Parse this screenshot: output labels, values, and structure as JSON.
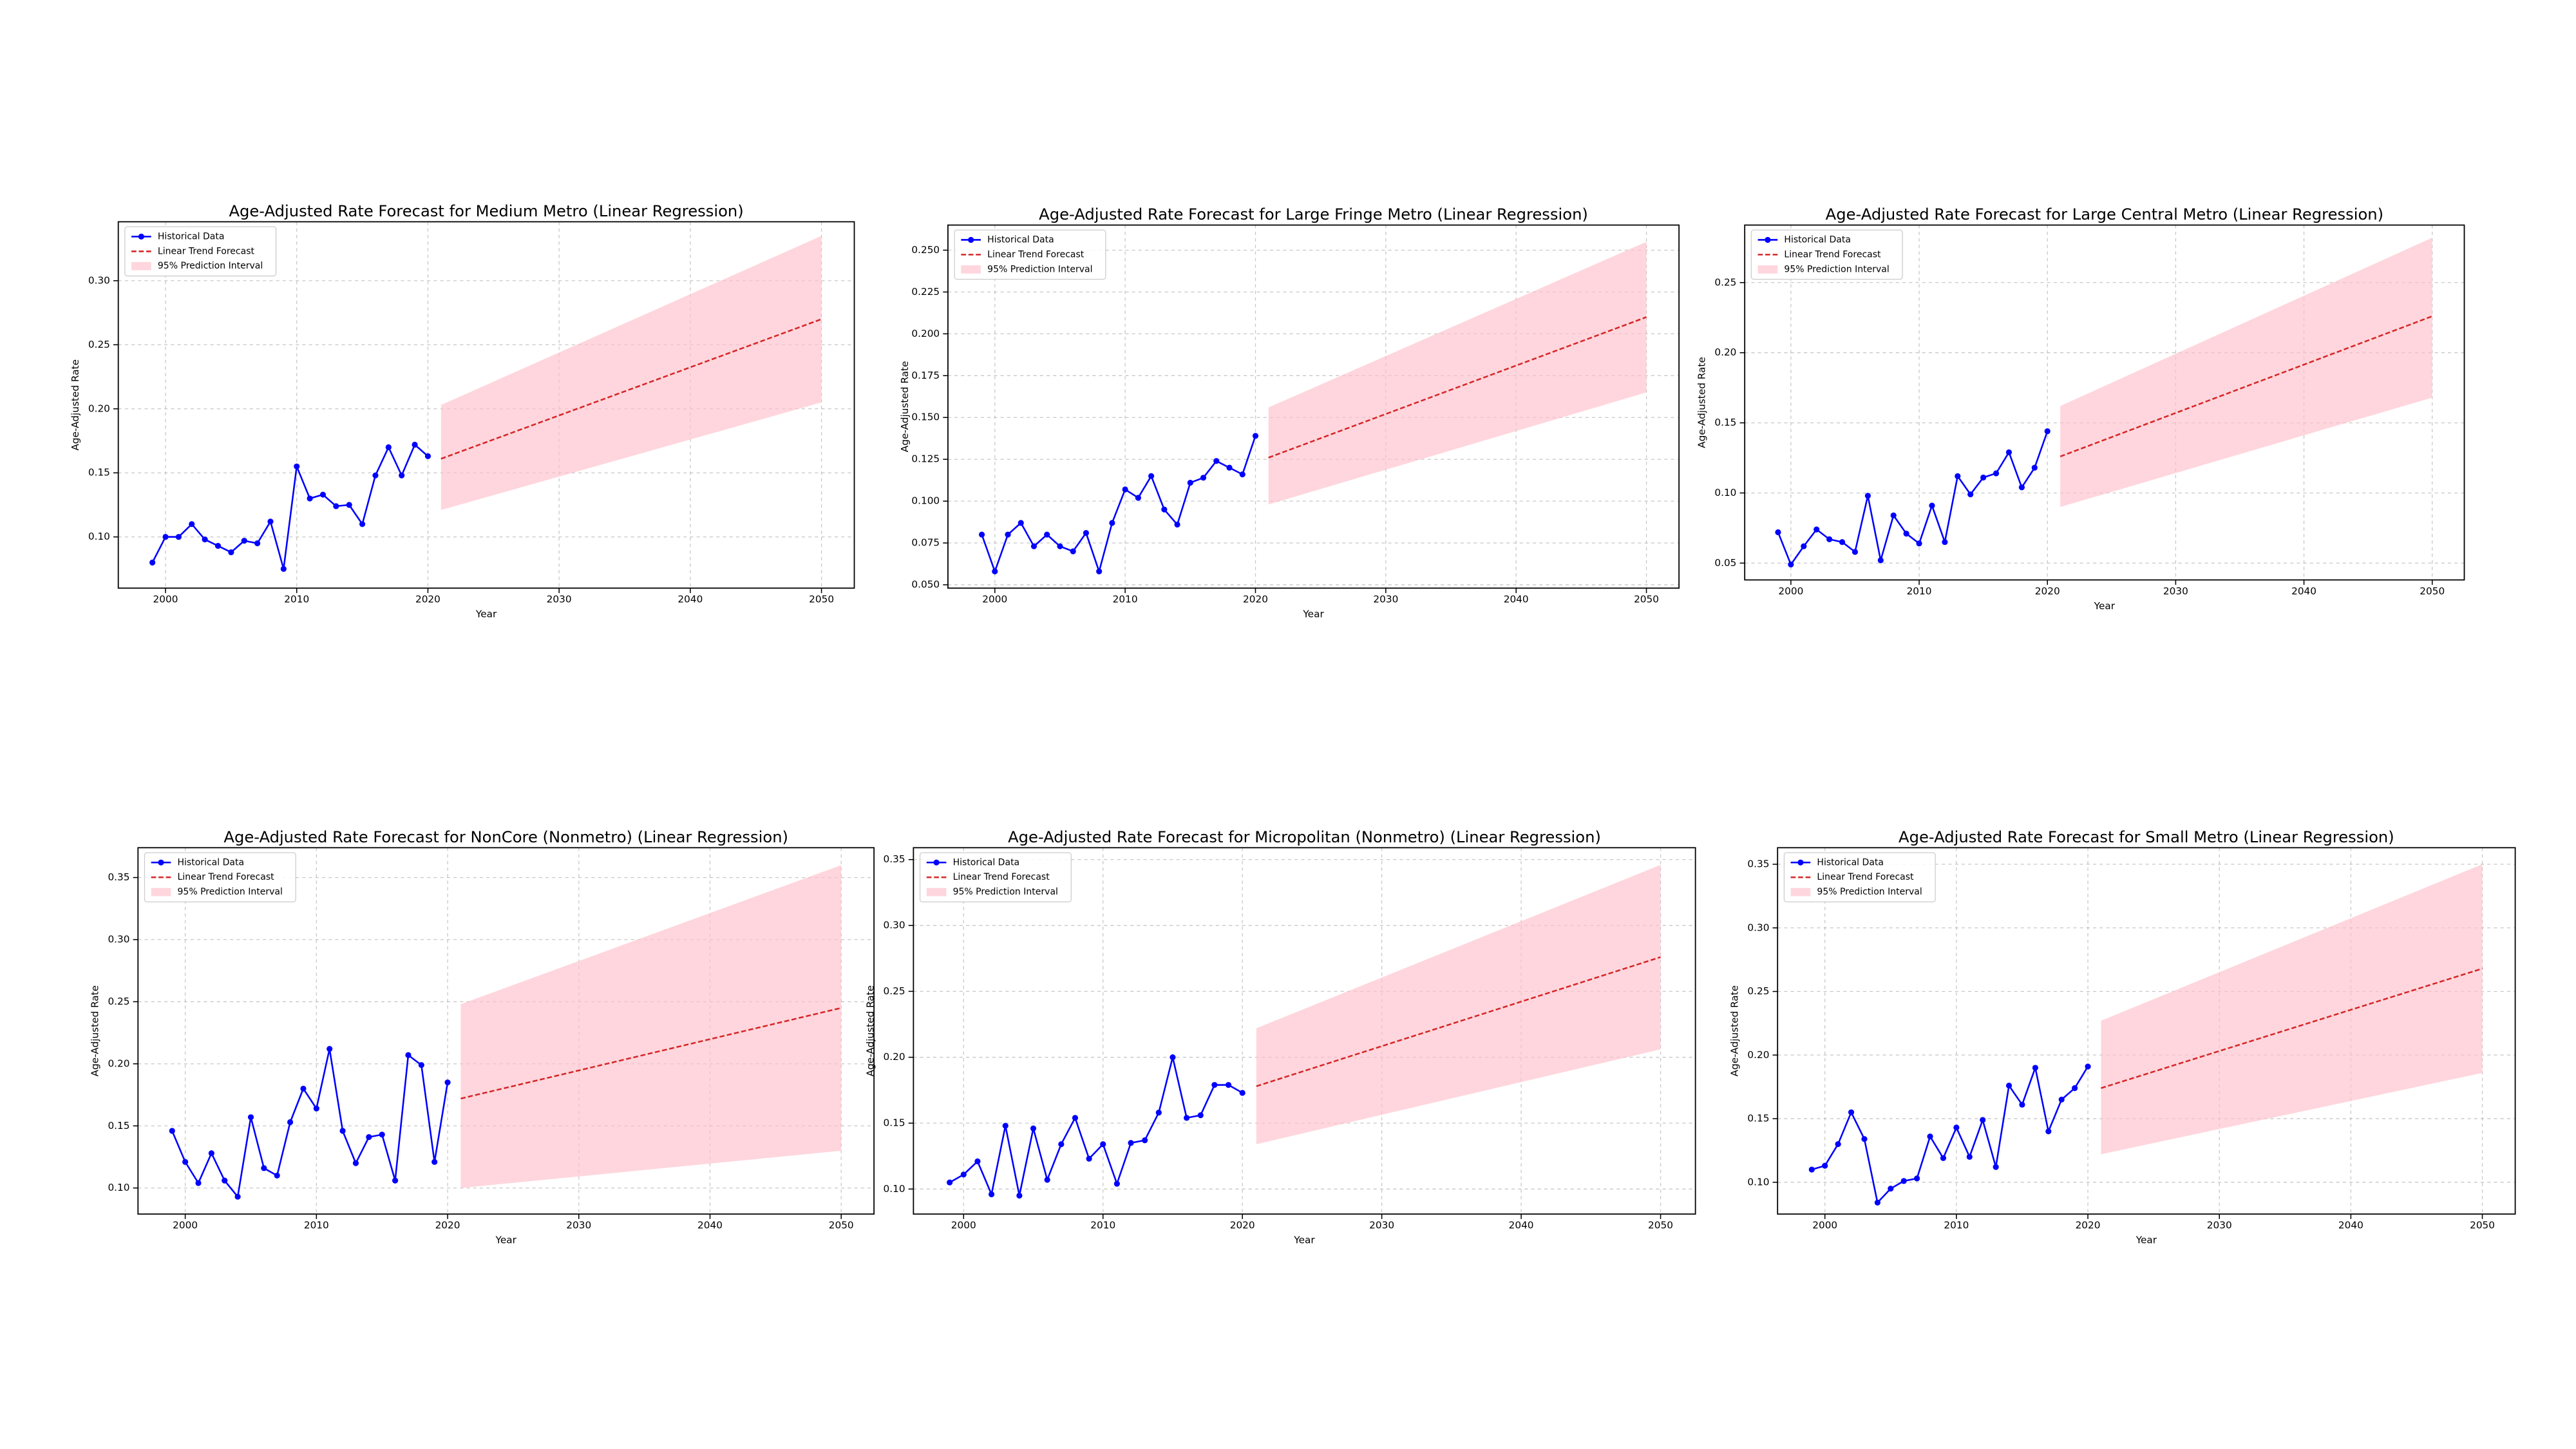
{
  "chart_data": [
    {
      "type": "line",
      "title": "Age-Adjusted Rate Forecast for Medium Metro (Linear Regression)",
      "x_label": "Year",
      "y_label": "Age-Adjusted Rate",
      "grid": true,
      "legend": "upper left",
      "xlim": [
        1996.4,
        2052.5
      ],
      "xticks": [
        2000,
        2010,
        2020,
        2030,
        2040,
        2050
      ],
      "ylim": [
        0.06,
        0.346
      ],
      "yticks": [
        {
          "value": 0.1,
          "label": "0.10"
        },
        {
          "value": 0.15,
          "label": "0.15"
        },
        {
          "value": 0.2,
          "label": "0.20"
        },
        {
          "value": 0.25,
          "label": "0.25"
        },
        {
          "value": 0.3,
          "label": "0.30"
        }
      ],
      "series": [
        {
          "name": "Historical Data",
          "color": "#0000ff",
          "marker": "o",
          "x": [
            1999,
            2000,
            2001,
            2002,
            2003,
            2004,
            2005,
            2006,
            2007,
            2008,
            2009,
            2010,
            2011,
            2012,
            2013,
            2014,
            2015,
            2016,
            2017,
            2018,
            2019,
            2020
          ],
          "values": [
            0.08,
            0.1,
            0.1,
            0.11,
            0.098,
            0.093,
            0.088,
            0.097,
            0.095,
            0.112,
            0.075,
            0.155,
            0.13,
            0.133,
            0.124,
            0.125,
            0.11,
            0.148,
            0.17,
            0.148,
            0.172,
            0.163
          ]
        },
        {
          "name": "Linear Trend Forecast",
          "color": "#d62728",
          "line_style": "dashed",
          "x": [
            2021,
            2050
          ],
          "values": [
            0.161,
            0.27
          ]
        },
        {
          "name": "95% Prediction Interval",
          "color": "#ffc0cb",
          "x": [
            2021,
            2050
          ],
          "lower": [
            0.121,
            0.205
          ],
          "upper": [
            0.203,
            0.335
          ]
        }
      ]
    },
    {
      "type": "line",
      "title": "Age-Adjusted Rate Forecast for Large Fringe Metro (Linear Regression)",
      "x_label": "Year",
      "y_label": "Age-Adjusted Rate",
      "grid": true,
      "legend": "upper left",
      "xlim": [
        1996.4,
        2052.5
      ],
      "xticks": [
        2000,
        2010,
        2020,
        2030,
        2040,
        2050
      ],
      "ylim": [
        0.048,
        0.265
      ],
      "yticks": [
        {
          "value": 0.05,
          "label": "0.050"
        },
        {
          "value": 0.075,
          "label": "0.075"
        },
        {
          "value": 0.1,
          "label": "0.100"
        },
        {
          "value": 0.125,
          "label": "0.125"
        },
        {
          "value": 0.15,
          "label": "0.150"
        },
        {
          "value": 0.175,
          "label": "0.175"
        },
        {
          "value": 0.2,
          "label": "0.200"
        },
        {
          "value": 0.225,
          "label": "0.225"
        },
        {
          "value": 0.25,
          "label": "0.250"
        }
      ],
      "series": [
        {
          "name": "Historical Data",
          "color": "#0000ff",
          "marker": "o",
          "x": [
            1999,
            2000,
            2001,
            2002,
            2003,
            2004,
            2005,
            2006,
            2007,
            2008,
            2009,
            2010,
            2011,
            2012,
            2013,
            2014,
            2015,
            2016,
            2017,
            2018,
            2019,
            2020
          ],
          "values": [
            0.08,
            0.058,
            0.08,
            0.087,
            0.073,
            0.08,
            0.073,
            0.07,
            0.081,
            0.058,
            0.087,
            0.107,
            0.102,
            0.115,
            0.095,
            0.086,
            0.111,
            0.114,
            0.124,
            0.12,
            0.116,
            0.139
          ]
        },
        {
          "name": "Linear Trend Forecast",
          "color": "#d62728",
          "line_style": "dashed",
          "x": [
            2021,
            2050
          ],
          "values": [
            0.126,
            0.21
          ]
        },
        {
          "name": "95% Prediction Interval",
          "color": "#ffc0cb",
          "x": [
            2021,
            2050
          ],
          "lower": [
            0.098,
            0.165
          ],
          "upper": [
            0.156,
            0.255
          ]
        }
      ]
    },
    {
      "type": "line",
      "title": "Age-Adjusted Rate Forecast for Large Central Metro (Linear Regression)",
      "x_label": "Year",
      "y_label": "Age-Adjusted Rate",
      "grid": true,
      "legend": "upper left",
      "xlim": [
        1996.4,
        2052.5
      ],
      "xticks": [
        2000,
        2010,
        2020,
        2030,
        2040,
        2050
      ],
      "ylim": [
        0.038,
        0.291
      ],
      "yticks": [
        {
          "value": 0.05,
          "label": "0.05"
        },
        {
          "value": 0.1,
          "label": "0.10"
        },
        {
          "value": 0.15,
          "label": "0.15"
        },
        {
          "value": 0.2,
          "label": "0.20"
        },
        {
          "value": 0.25,
          "label": "0.25"
        }
      ],
      "series": [
        {
          "name": "Historical Data",
          "color": "#0000ff",
          "marker": "o",
          "x": [
            1999,
            2000,
            2001,
            2002,
            2003,
            2004,
            2005,
            2006,
            2007,
            2008,
            2009,
            2010,
            2011,
            2012,
            2013,
            2014,
            2015,
            2016,
            2017,
            2018,
            2019,
            2020
          ],
          "values": [
            0.072,
            0.049,
            0.062,
            0.074,
            0.067,
            0.065,
            0.058,
            0.098,
            0.052,
            0.084,
            0.071,
            0.064,
            0.091,
            0.065,
            0.112,
            0.099,
            0.111,
            0.114,
            0.129,
            0.104,
            0.118,
            0.144
          ]
        },
        {
          "name": "Linear Trend Forecast",
          "color": "#d62728",
          "line_style": "dashed",
          "x": [
            2021,
            2050
          ],
          "values": [
            0.126,
            0.226
          ]
        },
        {
          "name": "95% Prediction Interval",
          "color": "#ffc0cb",
          "x": [
            2021,
            2050
          ],
          "lower": [
            0.09,
            0.168
          ],
          "upper": [
            0.162,
            0.282
          ]
        }
      ]
    },
    {
      "type": "line",
      "title": "Age-Adjusted Rate Forecast for NonCore (Nonmetro) (Linear Regression)",
      "x_label": "Year",
      "y_label": "Age-Adjusted Rate",
      "grid": true,
      "legend": "upper left",
      "xlim": [
        1996.4,
        2052.5
      ],
      "xticks": [
        2000,
        2010,
        2020,
        2030,
        2040,
        2050
      ],
      "ylim": [
        0.079,
        0.374
      ],
      "yticks": [
        {
          "value": 0.1,
          "label": "0.10"
        },
        {
          "value": 0.15,
          "label": "0.15"
        },
        {
          "value": 0.2,
          "label": "0.20"
        },
        {
          "value": 0.25,
          "label": "0.25"
        },
        {
          "value": 0.3,
          "label": "0.30"
        },
        {
          "value": 0.35,
          "label": "0.35"
        }
      ],
      "series": [
        {
          "name": "Historical Data",
          "color": "#0000ff",
          "marker": "o",
          "x": [
            1999,
            2000,
            2001,
            2002,
            2003,
            2004,
            2005,
            2006,
            2007,
            2008,
            2009,
            2010,
            2011,
            2012,
            2013,
            2014,
            2015,
            2016,
            2017,
            2018,
            2019,
            2020
          ],
          "values": [
            0.146,
            0.121,
            0.104,
            0.128,
            0.106,
            0.093,
            0.157,
            0.116,
            0.11,
            0.153,
            0.18,
            0.164,
            0.212,
            0.146,
            0.12,
            0.141,
            0.143,
            0.106,
            0.207,
            0.199,
            0.121,
            0.185
          ]
        },
        {
          "name": "Linear Trend Forecast",
          "color": "#d62728",
          "line_style": "dashed",
          "x": [
            2021,
            2050
          ],
          "values": [
            0.172,
            0.245
          ]
        },
        {
          "name": "95% Prediction Interval",
          "color": "#ffc0cb",
          "x": [
            2021,
            2050
          ],
          "lower": [
            0.1,
            0.13
          ],
          "upper": [
            0.248,
            0.36
          ]
        }
      ]
    },
    {
      "type": "line",
      "title": "Age-Adjusted Rate Forecast for Micropolitan (Nonmetro) (Linear Regression)",
      "x_label": "Year",
      "y_label": "Age-Adjusted Rate",
      "grid": true,
      "legend": "upper left",
      "xlim": [
        1996.4,
        2052.5
      ],
      "xticks": [
        2000,
        2010,
        2020,
        2030,
        2040,
        2050
      ],
      "ylim": [
        0.081,
        0.359
      ],
      "yticks": [
        {
          "value": 0.1,
          "label": "0.10"
        },
        {
          "value": 0.15,
          "label": "0.15"
        },
        {
          "value": 0.2,
          "label": "0.20"
        },
        {
          "value": 0.25,
          "label": "0.25"
        },
        {
          "value": 0.3,
          "label": "0.30"
        },
        {
          "value": 0.35,
          "label": "0.35"
        }
      ],
      "series": [
        {
          "name": "Historical Data",
          "color": "#0000ff",
          "marker": "o",
          "x": [
            1999,
            2000,
            2001,
            2002,
            2003,
            2004,
            2005,
            2006,
            2007,
            2008,
            2009,
            2010,
            2011,
            2012,
            2013,
            2014,
            2015,
            2016,
            2017,
            2018,
            2019,
            2020
          ],
          "values": [
            0.105,
            0.111,
            0.121,
            0.096,
            0.148,
            0.095,
            0.146,
            0.107,
            0.134,
            0.154,
            0.123,
            0.134,
            0.104,
            0.135,
            0.137,
            0.158,
            0.2,
            0.154,
            0.156,
            0.179,
            0.179,
            0.173
          ]
        },
        {
          "name": "Linear Trend Forecast",
          "color": "#d62728",
          "line_style": "dashed",
          "x": [
            2021,
            2050
          ],
          "values": [
            0.178,
            0.276
          ]
        },
        {
          "name": "95% Prediction Interval",
          "color": "#ffc0cb",
          "x": [
            2021,
            2050
          ],
          "lower": [
            0.134,
            0.206
          ],
          "upper": [
            0.222,
            0.346
          ]
        }
      ]
    },
    {
      "type": "line",
      "title": "Age-Adjusted Rate Forecast for Small Metro (Linear Regression)",
      "x_label": "Year",
      "y_label": "Age-Adjusted Rate",
      "grid": true,
      "legend": "upper left",
      "xlim": [
        1996.4,
        2052.5
      ],
      "xticks": [
        2000,
        2010,
        2020,
        2030,
        2040,
        2050
      ],
      "ylim": [
        0.075,
        0.363
      ],
      "yticks": [
        {
          "value": 0.1,
          "label": "0.10"
        },
        {
          "value": 0.15,
          "label": "0.15"
        },
        {
          "value": 0.2,
          "label": "0.20"
        },
        {
          "value": 0.25,
          "label": "0.25"
        },
        {
          "value": 0.3,
          "label": "0.30"
        },
        {
          "value": 0.35,
          "label": "0.35"
        }
      ],
      "series": [
        {
          "name": "Historical Data",
          "color": "#0000ff",
          "marker": "o",
          "x": [
            1999,
            2000,
            2001,
            2002,
            2003,
            2004,
            2005,
            2006,
            2007,
            2008,
            2009,
            2010,
            2011,
            2012,
            2013,
            2014,
            2015,
            2016,
            2017,
            2018,
            2019,
            2020
          ],
          "values": [
            0.11,
            0.113,
            0.13,
            0.155,
            0.134,
            0.084,
            0.095,
            0.101,
            0.103,
            0.136,
            0.119,
            0.143,
            0.12,
            0.149,
            0.112,
            0.176,
            0.161,
            0.19,
            0.14,
            0.165,
            0.174,
            0.191
          ]
        },
        {
          "name": "Linear Trend Forecast",
          "color": "#d62728",
          "line_style": "dashed",
          "x": [
            2021,
            2050
          ],
          "values": [
            0.174,
            0.268
          ]
        },
        {
          "name": "95% Prediction Interval",
          "color": "#ffc0cb",
          "x": [
            2021,
            2050
          ],
          "lower": [
            0.122,
            0.186
          ],
          "upper": [
            0.227,
            0.35
          ]
        }
      ]
    }
  ]
}
